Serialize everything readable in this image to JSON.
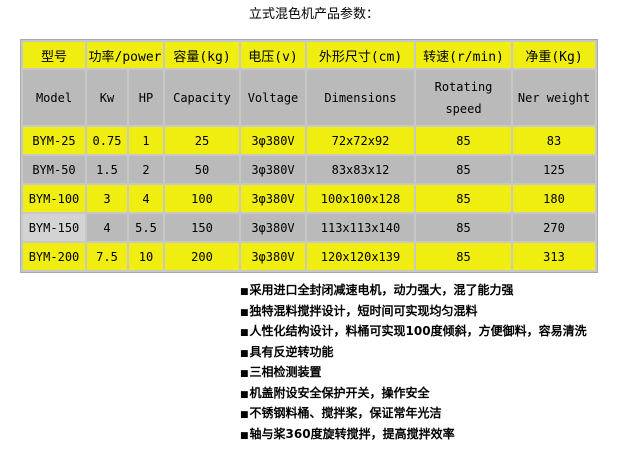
{
  "title": "立式混色机产品参数：",
  "table": {
    "header_cn": [
      "型号",
      "功率/power",
      "容量(kg)",
      "电压(v)",
      "外形尺寸(cm)",
      "转速(r/min)",
      "净重(Kg)"
    ],
    "header_en": [
      "Model",
      "Kw",
      "HP",
      "Capacity",
      "Voltage",
      "Dimensions",
      "Rotating speed",
      "Ner weight"
    ],
    "rows": [
      [
        "BYM-25",
        "0.75",
        "1",
        "25",
        "3φ380V",
        "72x72x92",
        "85",
        "83"
      ],
      [
        "BYM-50",
        "1.5",
        "2",
        "50",
        "3φ380V",
        "83x83x12",
        "85",
        "125"
      ],
      [
        "BYM-100",
        "3",
        "4",
        "100",
        "3φ380V",
        "100x100x128",
        "85",
        "180"
      ],
      [
        "BYM-150",
        "4",
        "5.5",
        "150",
        "3φ380V",
        "113x113x140",
        "85",
        "270"
      ],
      [
        "BYM-200",
        "7.5",
        "10",
        "200",
        "3φ380V",
        "120x120x139",
        "85",
        "313"
      ]
    ]
  },
  "colors": {
    "yellow": "#f0ee10",
    "gray": "#bababa"
  },
  "features": [
    "采用进口全封闭减速电机，动力强大，混了能力强",
    "独特混料搅拌设计，短时间可实现均匀混料",
    "人性化结构设计，料桶可实现100度倾斜，方便御料，容易清洗",
    "具有反逆转功能",
    "三相检测装置",
    "机盖附设安全保护开关，操作安全",
    "不锈钢料桶、搅拌桨，保证常年光洁",
    "轴与桨360度旋转搅拌，提高搅拌效率"
  ]
}
